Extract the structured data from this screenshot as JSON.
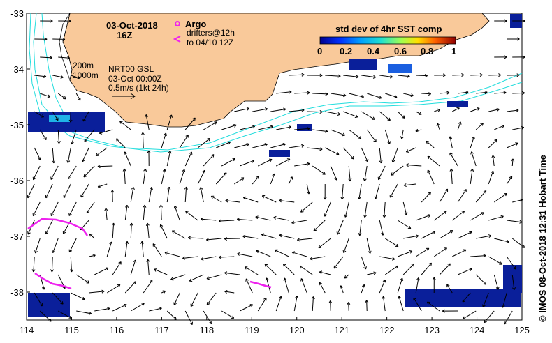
{
  "map": {
    "date": "03-Oct-2018",
    "time": "16Z",
    "argo_label": "Argo",
    "drifters_label": "drifters@12h",
    "drifters_range": "to 04/10 12Z",
    "isobath_200": "200m",
    "isobath_1000": "1000m",
    "product": "NRT00 GSL",
    "product_time": "03-Oct 00:00Z",
    "vector_scale": "0.5m/s (1kt 24h)",
    "credit": "© IMOS 08-Oct-2018 12:31 Hobart Time",
    "colors": {
      "land": "#f9c99a",
      "isobath": "#22dddd",
      "drifter": "#ee22ee",
      "arrow": "#000000"
    }
  },
  "colorbar": {
    "title": "std dev of 4hr SST comp",
    "ticks": [
      "0",
      "0.2",
      "0.4",
      "0.6",
      "0.8",
      "1"
    ],
    "range": [
      0,
      1
    ]
  },
  "axes": {
    "lon_ticks": [
      "114",
      "115",
      "116",
      "117",
      "118",
      "119",
      "120",
      "121",
      "122",
      "123",
      "124",
      "125"
    ],
    "lat_ticks": [
      "-33",
      "-34",
      "-35",
      "-36",
      "-37",
      "-38"
    ],
    "lon_range": [
      114,
      125
    ],
    "lat_range": [
      -38.5,
      -33
    ]
  }
}
